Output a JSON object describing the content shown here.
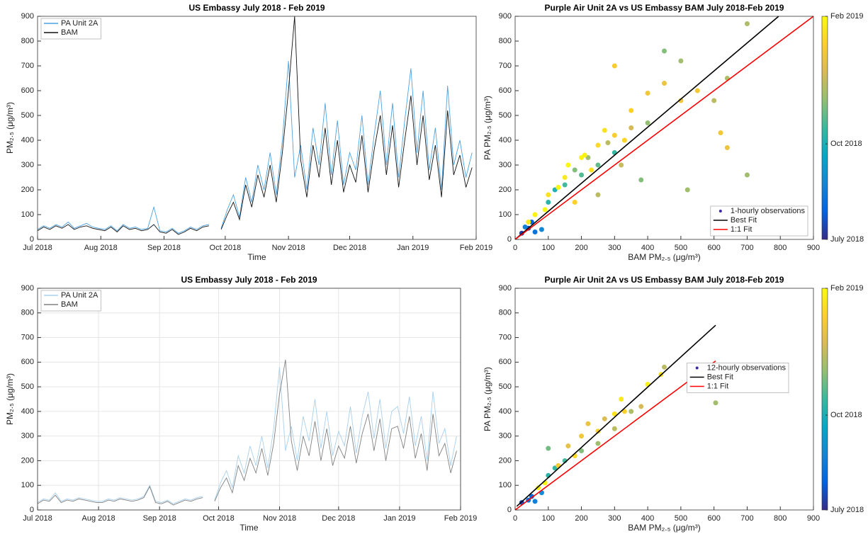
{
  "chart_data": [
    {
      "type": "line",
      "title": "US Embassy July 2018 - Feb 2019",
      "xlabel": "Time",
      "ylabel": "PM₂.₅ (μg/m³)",
      "x": [
        0,
        3,
        6,
        9,
        12,
        15,
        18,
        21,
        24,
        27,
        30,
        33,
        36,
        39,
        42,
        45,
        48,
        51,
        54,
        57,
        60,
        63,
        66,
        69,
        72,
        75,
        78,
        81,
        84,
        87,
        90,
        93,
        96,
        99,
        102,
        105,
        108,
        111,
        114,
        117,
        120,
        123,
        126,
        129,
        132,
        135,
        138,
        141,
        144,
        147,
        150,
        153,
        156,
        159,
        162,
        165,
        168,
        171,
        174,
        177,
        180,
        183,
        186,
        189,
        192,
        195,
        198,
        201,
        204,
        207,
        210,
        213
      ],
      "series": [
        {
          "name": "PA Unit 2A",
          "color": "#4da3e0",
          "values": [
            40,
            55,
            45,
            60,
            50,
            70,
            45,
            55,
            65,
            50,
            45,
            40,
            55,
            35,
            60,
            45,
            50,
            40,
            45,
            130,
            35,
            30,
            45,
            25,
            35,
            50,
            40,
            55,
            60,
            null,
            45,
            120,
            180,
            90,
            250,
            150,
            300,
            200,
            350,
            180,
            400,
            720,
            250,
            380,
            200,
            450,
            300,
            550,
            260,
            480,
            220,
            350,
            280,
            500,
            220,
            420,
            600,
            300,
            550,
            250,
            480,
            690,
            350,
            600,
            280,
            450,
            200,
            620,
            300,
            400,
            250,
            350
          ]
        },
        {
          "name": "BAM",
          "color": "#111111",
          "values": [
            35,
            50,
            40,
            55,
            45,
            60,
            40,
            50,
            55,
            45,
            40,
            35,
            50,
            30,
            55,
            40,
            45,
            35,
            40,
            60,
            30,
            25,
            40,
            20,
            30,
            45,
            35,
            50,
            55,
            null,
            40,
            100,
            150,
            80,
            220,
            130,
            260,
            170,
            300,
            150,
            350,
            600,
            900,
            320,
            170,
            380,
            250,
            450,
            220,
            400,
            190,
            300,
            230,
            420,
            190,
            360,
            500,
            260,
            460,
            210,
            400,
            580,
            300,
            500,
            240,
            380,
            170,
            520,
            260,
            340,
            210,
            290
          ]
        }
      ],
      "xlim": [
        0,
        215
      ],
      "xticks": [
        {
          "value": 0,
          "label": "Jul 2018"
        },
        {
          "value": 31,
          "label": "Aug 2018"
        },
        {
          "value": 62,
          "label": "Sep 2018"
        },
        {
          "value": 92,
          "label": "Oct 2018"
        },
        {
          "value": 123,
          "label": "Nov 2018"
        },
        {
          "value": 153,
          "label": "Dec 2018"
        },
        {
          "value": 184,
          "label": "Jan 2019"
        },
        {
          "value": 215,
          "label": "Feb 2019"
        }
      ],
      "ylim": [
        0,
        900
      ],
      "yticks": [
        0,
        100,
        200,
        300,
        400,
        500,
        600,
        700,
        800,
        900
      ],
      "grid": false,
      "legend": "upper left"
    },
    {
      "type": "scatter",
      "title": "Purple Air Unit 2A vs US Embassy BAM July 2018-Feb 2019",
      "xlabel": "BAM PM₂.₅ (μg/m³)",
      "ylabel": "PA PM₂.₅ (μg/m³)",
      "series": [
        {
          "name": "1-hourly observations",
          "color": "#3e26a8",
          "x": [
            20,
            40,
            60,
            30,
            80,
            50,
            100,
            150,
            200,
            250,
            300,
            120,
            180,
            220,
            280,
            350,
            400,
            450,
            500,
            700,
            700,
            600,
            640,
            520,
            320,
            380,
            250,
            100,
            150,
            200,
            250,
            300,
            350,
            400,
            450,
            500,
            550,
            620,
            640,
            160,
            210,
            270,
            300,
            180,
            90,
            130,
            230,
            330,
            60,
            40
          ],
          "y": [
            25,
            45,
            30,
            50,
            40,
            70,
            150,
            220,
            260,
            300,
            350,
            200,
            280,
            330,
            390,
            450,
            470,
            760,
            720,
            870,
            260,
            560,
            650,
            200,
            300,
            240,
            180,
            180,
            250,
            330,
            380,
            420,
            520,
            590,
            630,
            560,
            600,
            430,
            370,
            300,
            340,
            440,
            700,
            150,
            120,
            210,
            280,
            400,
            100,
            70
          ],
          "t": [
            10,
            20,
            40,
            50,
            55,
            30,
            100,
            110,
            115,
            120,
            105,
            95,
            130,
            140,
            150,
            160,
            135,
            130,
            140,
            145,
            140,
            150,
            145,
            140,
            155,
            130,
            150,
            200,
            205,
            210,
            195,
            185,
            190,
            180,
            175,
            178,
            182,
            180,
            176,
            212,
            208,
            200,
            185,
            190,
            213,
            214,
            198,
            192,
            210,
            205
          ]
        }
      ],
      "fits": [
        {
          "name": "Best Fit",
          "color": "#000000",
          "x": [
            0,
            795
          ],
          "y": [
            0,
            900
          ]
        },
        {
          "name": "1:1 Fit",
          "color": "#ff0000",
          "x": [
            0,
            900
          ],
          "y": [
            0,
            900
          ]
        }
      ],
      "xlim": [
        0,
        900
      ],
      "xticks": [
        0,
        100,
        200,
        300,
        400,
        500,
        600,
        700,
        800,
        900
      ],
      "ylim": [
        0,
        900
      ],
      "yticks": [
        0,
        100,
        200,
        300,
        400,
        500,
        600,
        700,
        800,
        900
      ],
      "grid": false,
      "legend": "lower right",
      "colormap": [
        "#352a87",
        "#0363e1",
        "#1485d4",
        "#06a7c6",
        "#38b99e",
        "#92bf73",
        "#d9ba56",
        "#fcce2e",
        "#f9fb0e"
      ],
      "clim": [
        0,
        215
      ],
      "cticks": [
        {
          "value": 0,
          "label": "July 2018"
        },
        {
          "value": 92,
          "label": "Oct 2018"
        },
        {
          "value": 215,
          "label": "Feb 2019"
        }
      ]
    },
    {
      "type": "line",
      "title": "US Embassy July 2018 - Feb 2019",
      "xlabel": "Time",
      "ylabel": "PM₂.₅ (μg/m³)",
      "x": [
        0,
        3,
        6,
        9,
        12,
        15,
        18,
        21,
        24,
        27,
        30,
        33,
        36,
        39,
        42,
        45,
        48,
        51,
        54,
        57,
        60,
        63,
        66,
        69,
        72,
        75,
        78,
        81,
        84,
        87,
        90,
        93,
        96,
        99,
        102,
        105,
        108,
        111,
        114,
        117,
        120,
        123,
        126,
        129,
        132,
        135,
        138,
        141,
        144,
        147,
        150,
        153,
        156,
        159,
        162,
        165,
        168,
        171,
        174,
        177,
        180,
        183,
        186,
        189,
        192,
        195,
        198,
        201,
        204,
        207,
        210,
        213
      ],
      "series": [
        {
          "name": "PA Unit 2A",
          "color": "#a8d0ee",
          "values": [
            30,
            45,
            40,
            70,
            35,
            45,
            40,
            50,
            45,
            40,
            35,
            35,
            45,
            40,
            50,
            45,
            40,
            45,
            55,
            100,
            35,
            30,
            40,
            25,
            35,
            45,
            40,
            50,
            55,
            null,
            40,
            110,
            160,
            90,
            220,
            150,
            260,
            180,
            300,
            170,
            330,
            580,
            240,
            340,
            200,
            380,
            280,
            450,
            250,
            400,
            220,
            320,
            260,
            420,
            230,
            380,
            480,
            290,
            450,
            250,
            400,
            420,
            310,
            460,
            260,
            380,
            200,
            480,
            270,
            330,
            180,
            300
          ]
        },
        {
          "name": "BAM",
          "color": "#808080",
          "values": [
            25,
            40,
            35,
            60,
            30,
            40,
            35,
            45,
            40,
            35,
            30,
            30,
            40,
            35,
            45,
            40,
            35,
            40,
            50,
            95,
            30,
            25,
            35,
            20,
            30,
            40,
            35,
            45,
            50,
            null,
            35,
            90,
            130,
            70,
            180,
            120,
            210,
            150,
            250,
            140,
            270,
            470,
            610,
            280,
            160,
            300,
            220,
            360,
            200,
            330,
            180,
            260,
            210,
            340,
            190,
            310,
            390,
            240,
            370,
            200,
            330,
            340,
            250,
            380,
            210,
            310,
            160,
            390,
            220,
            270,
            150,
            240
          ]
        }
      ],
      "xlim": [
        0,
        215
      ],
      "xticks": [
        {
          "value": 0,
          "label": "Jul 2018"
        },
        {
          "value": 31,
          "label": "Aug 2018"
        },
        {
          "value": 62,
          "label": "Sep 2018"
        },
        {
          "value": 92,
          "label": "Oct 2018"
        },
        {
          "value": 123,
          "label": "Nov 2018"
        },
        {
          "value": 153,
          "label": "Dec 2018"
        },
        {
          "value": 184,
          "label": "Jan 2019"
        },
        {
          "value": 215,
          "label": "Feb 2019"
        }
      ],
      "ylim": [
        0,
        900
      ],
      "yticks": [
        0,
        100,
        200,
        300,
        400,
        500,
        600,
        700,
        800,
        900
      ],
      "grid": true,
      "legend": "upper left"
    },
    {
      "type": "scatter",
      "title": "Purple Air Unit 2A vs US Embassy BAM July 2018-Feb 2019",
      "xlabel": "BAM PM₂.₅ (μg/m³)",
      "ylabel": "PA PM₂.₅ (μg/m³)",
      "series": [
        {
          "name": "12-hourly observations",
          "color": "#3e26a8",
          "x": [
            20,
            40,
            60,
            80,
            50,
            100,
            120,
            150,
            100,
            200,
            250,
            300,
            350,
            380,
            450,
            605,
            160,
            200,
            250,
            300,
            320,
            400,
            440,
            180,
            130,
            220,
            270,
            90,
            70,
            330
          ],
          "y": [
            30,
            40,
            35,
            70,
            55,
            140,
            170,
            200,
            250,
            240,
            270,
            330,
            400,
            420,
            580,
            435,
            260,
            300,
            320,
            390,
            450,
            510,
            550,
            220,
            180,
            350,
            370,
            110,
            90,
            400
          ],
          "t": [
            15,
            40,
            50,
            60,
            30,
            100,
            105,
            110,
            125,
            130,
            140,
            150,
            145,
            160,
            150,
            140,
            170,
            180,
            190,
            200,
            205,
            210,
            200,
            195,
            185,
            175,
            165,
            212,
            208,
            190
          ]
        }
      ],
      "fits": [
        {
          "name": "Best Fit",
          "color": "#000000",
          "x": [
            5,
            605
          ],
          "y": [
            15,
            750
          ]
        },
        {
          "name": "1:1 Fit",
          "color": "#ff0000",
          "x": [
            0,
            605
          ],
          "y": [
            0,
            605
          ]
        }
      ],
      "xlim": [
        0,
        900
      ],
      "xticks": [
        0,
        100,
        200,
        300,
        400,
        500,
        600,
        700,
        800,
        900
      ],
      "ylim": [
        0,
        900
      ],
      "yticks": [
        0,
        100,
        200,
        300,
        400,
        500,
        600,
        700,
        800,
        900
      ],
      "grid": false,
      "legend": "center right",
      "colormap": [
        "#352a87",
        "#0363e1",
        "#1485d4",
        "#06a7c6",
        "#38b99e",
        "#92bf73",
        "#d9ba56",
        "#fcce2e",
        "#f9fb0e"
      ],
      "clim": [
        0,
        215
      ],
      "cticks": [
        {
          "value": 0,
          "label": "July 2018"
        },
        {
          "value": 92,
          "label": "Oct 2018"
        },
        {
          "value": 215,
          "label": "Feb 2019"
        }
      ]
    }
  ]
}
